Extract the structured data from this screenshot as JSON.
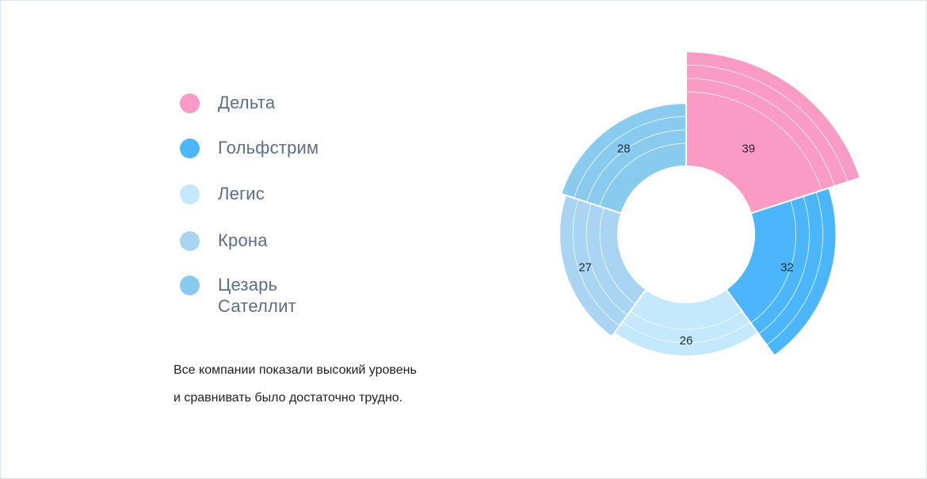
{
  "chart_data": {
    "type": "pie",
    "variant": "donut",
    "categories": [
      "Дельта",
      "Гольфстрим",
      "Легис",
      "Крона",
      "Цезарь Сателлит"
    ],
    "values": [
      39,
      32,
      26,
      27,
      28
    ],
    "colors": [
      "#f99bc4",
      "#4bb6fb",
      "#c4e8fc",
      "#a9d5f2",
      "#88cbef"
    ],
    "legend_position": "left",
    "start_angle_deg": 0,
    "direction": "clockwise"
  },
  "legend": [
    {
      "label": "Дельта",
      "color": "#f99bc4"
    },
    {
      "label": "Гольфстрим",
      "color": "#4bb6fb"
    },
    {
      "label": "Легис",
      "color": "#c4e8fc"
    },
    {
      "label": "Крона",
      "color": "#a9d5f2"
    },
    {
      "label": "Цезарь\nСателлит",
      "color": "#88cbef"
    }
  ],
  "note": {
    "line1": "Все компании показали высокий уровень",
    "line2": "и сравнивать было достаточно трудно."
  }
}
